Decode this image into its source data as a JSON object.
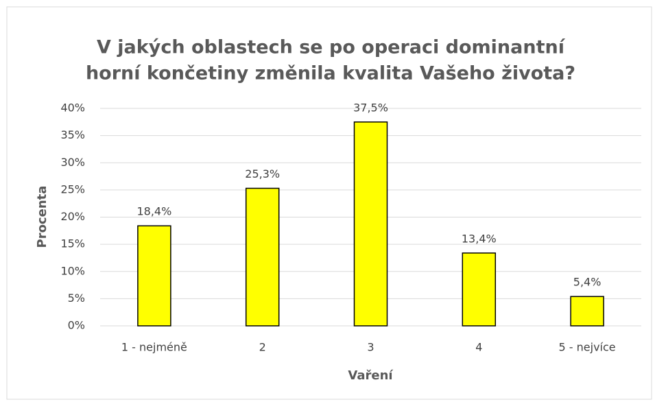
{
  "chart_data": {
    "type": "bar",
    "title": [
      "V jakých oblastech se po operaci dominantní",
      "horní končetiny změnila kvalita Vašeho života?"
    ],
    "x_label": "Vaření",
    "y_label": "Procenta",
    "categories": [
      "1 - nejméně",
      "2",
      "3",
      "4",
      "5 - nejvíce"
    ],
    "values": [
      18.4,
      25.3,
      37.5,
      13.4,
      5.4
    ],
    "value_labels": [
      "18,4%",
      "25,3%",
      "37,5%",
      "13,4%",
      "5,4%"
    ],
    "color": "#ffff00",
    "ylim": [
      0,
      40
    ],
    "yticks": [
      {
        "value": 0,
        "label": "0%"
      },
      {
        "value": 5,
        "label": "5%"
      },
      {
        "value": 10,
        "label": "10%"
      },
      {
        "value": 15,
        "label": "15%"
      },
      {
        "value": 20,
        "label": "20%"
      },
      {
        "value": 25,
        "label": "25%"
      },
      {
        "value": 30,
        "label": "30%"
      },
      {
        "value": 35,
        "label": "35%"
      },
      {
        "value": 40,
        "label": "40%"
      }
    ],
    "grid": true
  }
}
